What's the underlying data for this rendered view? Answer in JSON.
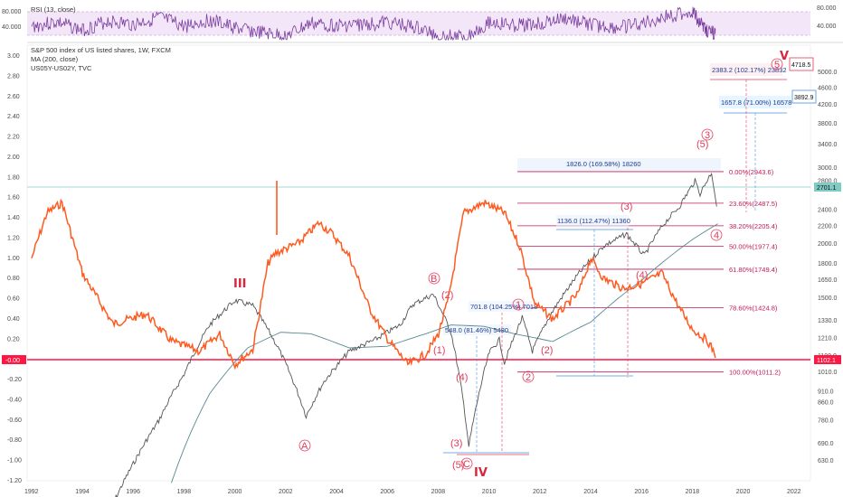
{
  "colors": {
    "price_bars": "#555555",
    "ma": "#5a8a94",
    "spread": "#ff5a1f",
    "fib": "#c2185b",
    "wave": "#e23b5a",
    "rsi": "#7b3fa0",
    "rsi_band": "#f0e2f7",
    "zero_line": "#ff1744",
    "hline": "#80cbc4"
  },
  "rsi_panel": {
    "label": "RSI (13, close)",
    "left_ticks": [
      "80.000",
      "40.000"
    ],
    "right_ticks": [
      "80.000",
      "40.000"
    ]
  },
  "legend": {
    "main": "S&P 500 index of US listed shares, 1W, FXCM",
    "ma": "MA (200, close)",
    "overlay": "US05Y-US02Y, TVC"
  },
  "badges": {
    "zero": "-0.00",
    "price": "2701.1",
    "last": "1102.1",
    "target1": "3892.9",
    "target2": "4718.5"
  },
  "fib_levels": [
    {
      "label": "0.00%(2943.6)"
    },
    {
      "label": "23.60%(2487.5)"
    },
    {
      "label": "38.20%(2205.4)"
    },
    {
      "label": "50.00%(1977.4)"
    },
    {
      "label": "61.80%(1749.4)"
    },
    {
      "label": "78.60%(1424.8)"
    },
    {
      "label": "100.00%(1011.2)"
    }
  ],
  "measurements": [
    {
      "label": "1826.0 (169.58%) 18260"
    },
    {
      "label": "1136.0 (112.47%) 11360"
    },
    {
      "label": "701.8 (104.25%) 7018"
    },
    {
      "label": "548.0 (81.46%) 5480"
    },
    {
      "label": "1657.8 (71.00%) 16578"
    },
    {
      "label": "2383.2 (102.17%) 23832"
    }
  ],
  "wave_labels": [
    "III",
    "IV",
    "V",
    "(5)",
    "3",
    "(3)",
    "4",
    "(4)",
    "(1)",
    "(2)",
    "1",
    "2",
    "B",
    "(2)",
    "A",
    "(4)",
    "(3)",
    "(5)",
    "C",
    "(2)",
    "5"
  ],
  "chart_data": {
    "type": "line",
    "title": "S&P 500 index of US listed shares, 1W, FXCM",
    "x_ticks": [
      "1992",
      "1994",
      "1996",
      "1998",
      "2000",
      "2002",
      "2004",
      "2006",
      "2008",
      "2010",
      "2012",
      "2014",
      "2016",
      "2018",
      "2020",
      "2022"
    ],
    "y_left_ticks": [
      "3.00",
      "2.80",
      "2.60",
      "2.40",
      "2.20",
      "2.00",
      "1.80",
      "1.60",
      "1.40",
      "1.20",
      "1.00",
      "0.80",
      "0.60",
      "0.40",
      "0.20",
      "0.00",
      "-0.20",
      "-0.40",
      "-0.60",
      "-0.80",
      "-1.00",
      "-1.20"
    ],
    "y_right_ticks": [
      "5000.0",
      "4600.0",
      "4200.0",
      "3800.0",
      "3400.0",
      "3000.0",
      "2800.0",
      "2400.0",
      "2200.0",
      "2000.0",
      "1800.0",
      "1650.0",
      "1500.0",
      "1330.0",
      "1210.0",
      "1100.0",
      "1010.0",
      "910.0",
      "860.0",
      "780.0",
      "690.0",
      "630.0"
    ],
    "y_left_range": [
      -1.2,
      3.0
    ],
    "y_right_scale": "log",
    "series": [
      {
        "name": "S&P 500 index of US listed shares, 1W, FXCM",
        "axis": "right",
        "x": [
          1995.0,
          1996.0,
          1997.0,
          1998.0,
          1999.0,
          2000.0,
          2000.7,
          2001.7,
          2002.8,
          2003.5,
          2004.5,
          2005.5,
          2006.5,
          2007.0,
          2007.8,
          2008.5,
          2009.0,
          2009.2,
          2010.0,
          2010.4,
          2010.6,
          2011.3,
          2011.7,
          2012.5,
          2013.5,
          2014.5,
          2015.4,
          2016.1,
          2016.8,
          2017.5,
          2018.1,
          2018.3,
          2018.75,
          2018.95
        ],
        "y": [
          470,
          620,
          780,
          1000,
          1300,
          1480,
          1440,
          1150,
          800,
          960,
          1130,
          1200,
          1300,
          1450,
          1530,
          1250,
          850,
          680,
          1120,
          1200,
          1060,
          1350,
          1130,
          1400,
          1700,
          1980,
          2110,
          1880,
          2200,
          2450,
          2800,
          2620,
          2930,
          2450
        ]
      },
      {
        "name": "MA (200, close)",
        "axis": "right",
        "x": [
          1997.5,
          1999.0,
          2000.5,
          2001.8,
          2003.0,
          2004.5,
          2006.0,
          2007.5,
          2008.5,
          2009.8,
          2011.0,
          2012.5,
          2014.0,
          2016.0,
          2018.0,
          2019.0
        ],
        "y": [
          560,
          900,
          1150,
          1250,
          1240,
          1150,
          1160,
          1240,
          1300,
          1290,
          1240,
          1190,
          1320,
          1650,
          2050,
          2230
        ]
      },
      {
        "name": "US05Y-US02Y, TVC",
        "axis": "left",
        "x": [
          1992.0,
          1992.6,
          1993.2,
          1994.0,
          1995.2,
          1996.5,
          1997.5,
          1998.6,
          1999.4,
          2000.0,
          2000.7,
          2001.3,
          2001.6,
          2002.5,
          2003.3,
          2003.8,
          2004.5,
          2005.3,
          2006.0,
          2006.8,
          2007.5,
          2008.0,
          2008.4,
          2009.0,
          2009.8,
          2010.6,
          2011.2,
          2011.8,
          2012.5,
          2013.5,
          2014.0,
          2014.5,
          2015.3,
          2016.0,
          2016.8,
          2017.5,
          2018.0,
          2018.6,
          2018.9
        ],
        "y": [
          1.0,
          1.45,
          1.55,
          0.85,
          0.35,
          0.45,
          0.18,
          0.08,
          0.25,
          -0.05,
          0.1,
          0.95,
          1.05,
          1.15,
          1.35,
          1.25,
          1.02,
          0.5,
          0.2,
          -0.05,
          0.05,
          0.25,
          0.6,
          1.45,
          1.55,
          1.45,
          1.12,
          0.55,
          0.4,
          0.65,
          1.0,
          0.8,
          0.7,
          0.75,
          0.85,
          0.5,
          0.3,
          0.18,
          0.05
        ]
      }
    ],
    "rsi_series": {
      "name": "RSI (13, close)",
      "x": [
        1992.0,
        1993.0,
        1994.0,
        1995.0,
        1996.0,
        1997.0,
        1998.0,
        1999.0,
        2000.0,
        2001.0,
        2002.0,
        2003.0,
        2004.0,
        2005.0,
        2006.0,
        2007.0,
        2008.0,
        2009.0,
        2010.0,
        2011.0,
        2012.0,
        2013.0,
        2014.0,
        2015.0,
        2016.0,
        2017.0,
        2018.0,
        2018.5,
        2018.9
      ],
      "y": [
        55,
        62,
        48,
        64,
        58,
        70,
        55,
        66,
        52,
        44,
        38,
        60,
        56,
        58,
        62,
        54,
        40,
        35,
        62,
        56,
        60,
        68,
        58,
        52,
        60,
        72,
        80,
        50,
        42
      ]
    }
  }
}
